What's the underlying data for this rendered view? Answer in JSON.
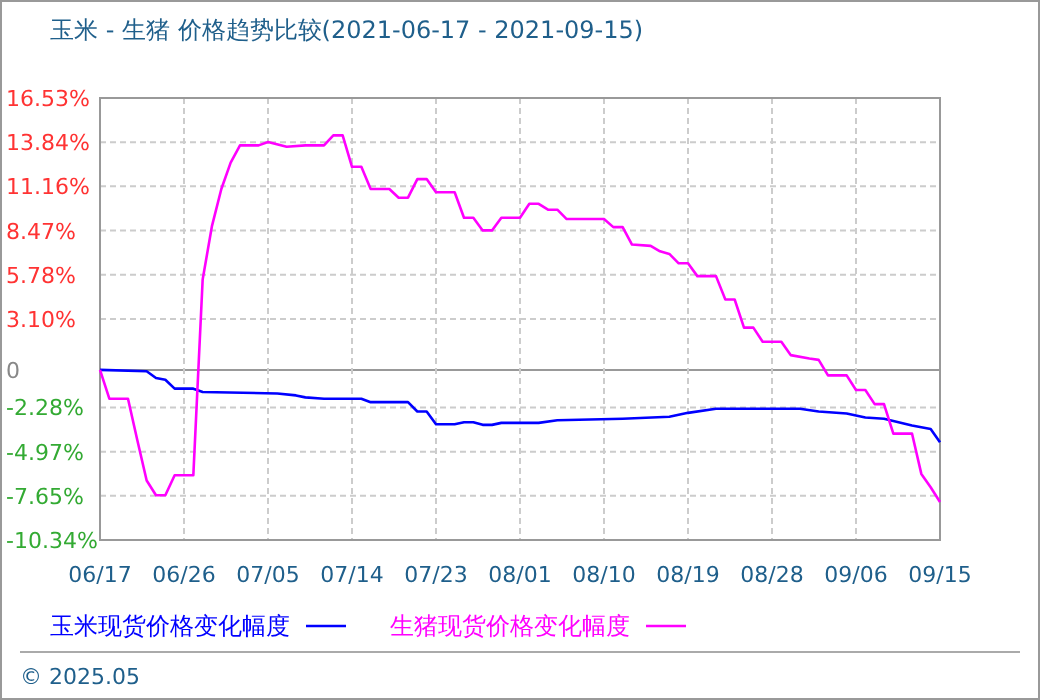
{
  "chart_data": {
    "type": "line",
    "title": "玉米 - 生猪 价格趋势比较(2021-06-17 - 2021-09-15)",
    "xlim": [
      "2021-06-17",
      "2021-09-15"
    ],
    "xticks": [
      {
        "value": "2021-06-17",
        "label": "06/17"
      },
      {
        "value": "2021-06-26",
        "label": "06/26"
      },
      {
        "value": "2021-07-05",
        "label": "07/05"
      },
      {
        "value": "2021-07-14",
        "label": "07/14"
      },
      {
        "value": "2021-07-23",
        "label": "07/23"
      },
      {
        "value": "2021-08-01",
        "label": "08/01"
      },
      {
        "value": "2021-08-10",
        "label": "08/10"
      },
      {
        "value": "2021-08-19",
        "label": "08/19"
      },
      {
        "value": "2021-08-28",
        "label": "08/28"
      },
      {
        "value": "2021-09-06",
        "label": "09/06"
      },
      {
        "value": "2021-09-15",
        "label": "09/15"
      }
    ],
    "ylim": [
      -10.34,
      16.53
    ],
    "yticks": [
      {
        "value": 16.53,
        "label": "16.53%"
      },
      {
        "value": 13.84,
        "label": "13.84%"
      },
      {
        "value": 11.16,
        "label": "11.16%"
      },
      {
        "value": 8.47,
        "label": "8.47%"
      },
      {
        "value": 5.78,
        "label": "5.78%"
      },
      {
        "value": 3.1,
        "label": "3.10%"
      },
      0,
      {
        "value": -2.28,
        "label": "-2.28%"
      },
      {
        "value": -4.97,
        "label": "-4.97%"
      },
      {
        "value": -7.65,
        "label": "-7.65%"
      },
      {
        "value": -10.34,
        "label": "-10.34%"
      }
    ],
    "grid": true,
    "legend": "bottom",
    "line_style": "solid",
    "marker": "none",
    "annotations": [
      "© 2025.05"
    ],
    "series": [
      {
        "name": "玉米现货价格变化幅度",
        "color": "#0000ff",
        "x": [
          "2021-06-17",
          "2021-06-22",
          "2021-06-23",
          "2021-06-24",
          "2021-06-25",
          "2021-06-27",
          "2021-06-28",
          "2021-07-06",
          "2021-07-08",
          "2021-07-09",
          "2021-07-11",
          "2021-07-15",
          "2021-07-16",
          "2021-07-20",
          "2021-07-21",
          "2021-07-22",
          "2021-07-23",
          "2021-07-25",
          "2021-07-26",
          "2021-07-27",
          "2021-07-28",
          "2021-07-29",
          "2021-07-30",
          "2021-08-03",
          "2021-08-05",
          "2021-08-12",
          "2021-08-17",
          "2021-08-19",
          "2021-08-22",
          "2021-08-31",
          "2021-09-02",
          "2021-09-05",
          "2021-09-07",
          "2021-09-09",
          "2021-09-12",
          "2021-09-14",
          "2021-09-15"
        ],
        "values": [
          0,
          -0.08,
          -0.49,
          -0.6,
          -1.14,
          -1.14,
          -1.34,
          -1.43,
          -1.55,
          -1.67,
          -1.75,
          -1.75,
          -1.96,
          -1.96,
          -2.53,
          -2.53,
          -3.3,
          -3.3,
          -3.18,
          -3.18,
          -3.34,
          -3.34,
          -3.22,
          -3.22,
          -3.06,
          -2.97,
          -2.85,
          -2.61,
          -2.36,
          -2.36,
          -2.53,
          -2.65,
          -2.89,
          -2.97,
          -3.38,
          -3.59,
          -4.4
        ]
      },
      {
        "name": "生猪现货价格变化幅度",
        "color": "#ff00ff",
        "x": [
          "2021-06-17",
          "2021-06-18",
          "2021-06-20",
          "2021-06-21",
          "2021-06-22",
          "2021-06-23",
          "2021-06-24",
          "2021-06-25",
          "2021-06-27",
          "2021-06-28",
          "2021-06-29",
          "2021-06-30",
          "2021-07-01",
          "2021-07-02",
          "2021-07-04",
          "2021-07-05",
          "2021-07-07",
          "2021-07-09",
          "2021-07-11",
          "2021-07-12",
          "2021-07-13",
          "2021-07-14",
          "2021-07-15",
          "2021-07-16",
          "2021-07-18",
          "2021-07-19",
          "2021-07-20",
          "2021-07-21",
          "2021-07-22",
          "2021-07-23",
          "2021-07-25",
          "2021-07-26",
          "2021-07-27",
          "2021-07-28",
          "2021-07-29",
          "2021-07-30",
          "2021-08-01",
          "2021-08-02",
          "2021-08-03",
          "2021-08-04",
          "2021-08-05",
          "2021-08-06",
          "2021-08-10",
          "2021-08-11",
          "2021-08-12",
          "2021-08-13",
          "2021-08-15",
          "2021-08-16",
          "2021-08-17",
          "2021-08-18",
          "2021-08-19",
          "2021-08-20",
          "2021-08-22",
          "2021-08-23",
          "2021-08-24",
          "2021-08-25",
          "2021-08-26",
          "2021-08-27",
          "2021-08-29",
          "2021-08-30",
          "2021-09-01",
          "2021-09-02",
          "2021-09-03",
          "2021-09-05",
          "2021-09-06",
          "2021-09-07",
          "2021-09-08",
          "2021-09-09",
          "2021-09-10",
          "2021-09-12",
          "2021-09-13",
          "2021-09-14",
          "2021-09-15"
        ],
        "values": [
          0,
          -1.75,
          -1.75,
          -4.28,
          -6.72,
          -7.62,
          -7.62,
          -6.4,
          -6.4,
          5.5,
          8.76,
          11.0,
          12.6,
          13.65,
          13.65,
          13.85,
          13.57,
          13.65,
          13.65,
          14.26,
          14.26,
          12.35,
          12.35,
          11.0,
          11.0,
          10.47,
          10.47,
          11.6,
          11.6,
          10.8,
          10.8,
          9.25,
          9.25,
          8.48,
          8.48,
          9.25,
          9.25,
          10.1,
          10.1,
          9.74,
          9.74,
          9.17,
          9.17,
          8.68,
          8.68,
          7.62,
          7.54,
          7.21,
          7.05,
          6.48,
          6.48,
          5.7,
          5.7,
          4.28,
          4.28,
          2.57,
          2.57,
          1.71,
          1.71,
          0.9,
          0.69,
          0.61,
          -0.33,
          -0.33,
          -1.22,
          -1.22,
          -2.08,
          -2.08,
          -3.87,
          -3.87,
          -6.32,
          -7.13,
          -8.03
        ]
      }
    ]
  }
}
